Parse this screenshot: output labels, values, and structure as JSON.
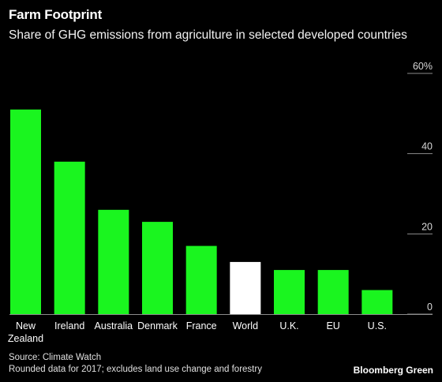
{
  "chart_data": {
    "type": "bar",
    "title": "Farm Footprint",
    "subtitle": "Share of GHG emissions from agriculture in selected developed countries",
    "categories": [
      [
        "New",
        "Zealand"
      ],
      [
        "Ireland"
      ],
      [
        "Australia"
      ],
      [
        "Denmark"
      ],
      [
        "France"
      ],
      [
        "World"
      ],
      [
        "U.K."
      ],
      [
        "EU"
      ],
      [
        "U.S."
      ]
    ],
    "values": [
      51,
      38,
      26,
      23,
      17,
      13,
      11,
      11,
      6
    ],
    "highlight": [
      "World"
    ],
    "colors": {
      "bar": "#1af51f",
      "highlight": "#ffffff",
      "axis": "#8c8c8c",
      "background": "#000000"
    },
    "ylim": [
      0,
      60
    ],
    "yticks": [
      0,
      20,
      40,
      60
    ],
    "ytick_labels": [
      "0",
      "20",
      "40",
      "60%"
    ],
    "yaxis_position": "right",
    "grid": false,
    "legend": "none"
  },
  "footer": {
    "source": "Source: Climate Watch",
    "note": "Rounded data for 2017; excludes land use change and forestry",
    "brand": "Bloomberg Green"
  }
}
